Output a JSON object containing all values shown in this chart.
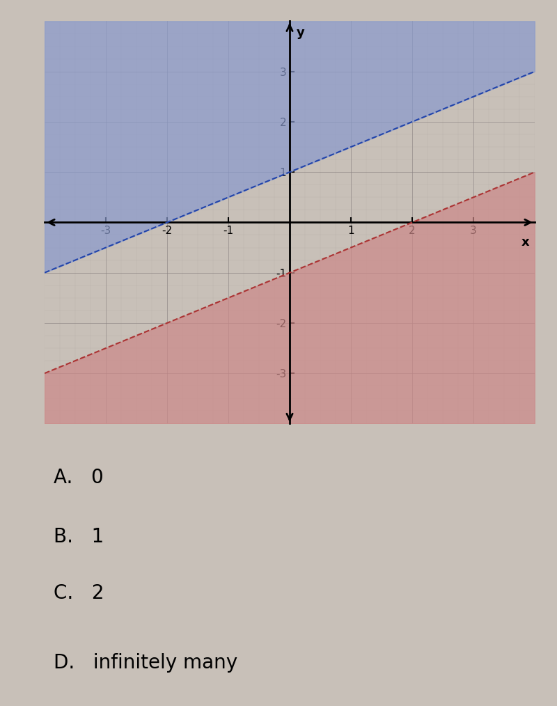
{
  "xlim": [
    -4,
    4
  ],
  "ylim": [
    -4,
    4
  ],
  "blue_line_slope": 0.5,
  "blue_line_intercept": 1,
  "red_line_slope": 0.5,
  "red_line_intercept": -1,
  "blue_fill_color": "#8899CC",
  "red_fill_color": "#CC8888",
  "blue_line_color": "#2244AA",
  "red_line_color": "#AA3333",
  "blue_alpha": 0.7,
  "red_alpha": 0.7,
  "background_color": "#C8C0B8",
  "grid_major_color": "#888080",
  "grid_minor_color": "#AAA0A0",
  "answer_choices": [
    "A.   0",
    "B.   1",
    "C.   2",
    "D.   infinitely many"
  ],
  "axis_ticks": [
    -3,
    -2,
    -1,
    1,
    2,
    3
  ],
  "graph_bg_color": "#C8C0B8"
}
